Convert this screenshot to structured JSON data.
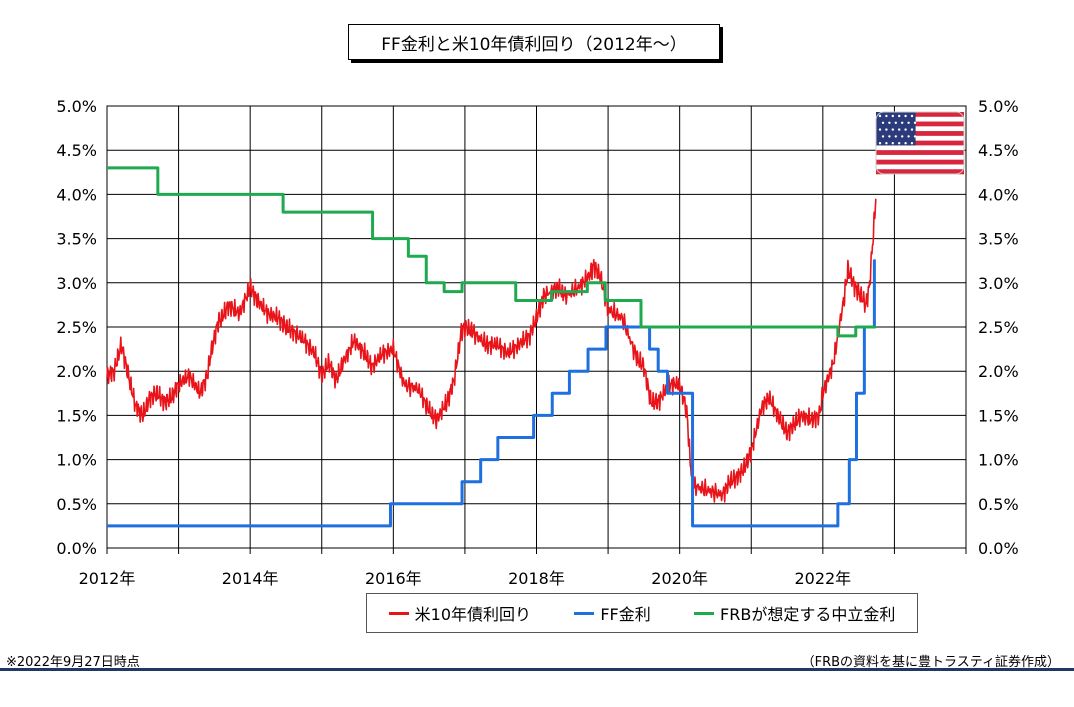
{
  "chart_data": {
    "type": "line",
    "title": "FF金利と米10年債利回り（2012年～）",
    "footnote": "※2022年9月27日時点",
    "source": "（FRBの資料を基に豊トラスティ証券作成）",
    "xlabel": "",
    "ylabel": "",
    "x_range": [
      2012.0,
      2024.0
    ],
    "ylim": [
      0.0,
      5.0
    ],
    "grid": true,
    "x_tick_labels": [
      {
        "x": 2012,
        "label": "2012年"
      },
      {
        "x": 2014,
        "label": "2014年"
      },
      {
        "x": 2016,
        "label": "2016年"
      },
      {
        "x": 2018,
        "label": "2018年"
      },
      {
        "x": 2020,
        "label": "2020年"
      },
      {
        "x": 2022,
        "label": "2022年"
      }
    ],
    "y_tick_labels": [
      "0.0%",
      "0.5%",
      "1.0%",
      "1.5%",
      "2.0%",
      "2.5%",
      "3.0%",
      "3.5%",
      "4.0%",
      "4.5%",
      "5.0%"
    ],
    "legend_position": "bottom-center",
    "series": [
      {
        "name": "米10年債利回り",
        "color": "#e8141a",
        "style": "line",
        "x": [
          2012.0,
          2012.1,
          2012.2,
          2012.3,
          2012.4,
          2012.5,
          2012.6,
          2012.7,
          2012.8,
          2012.9,
          2013.0,
          2013.15,
          2013.3,
          2013.4,
          2013.45,
          2013.55,
          2013.6,
          2013.7,
          2013.85,
          2014.0,
          2014.1,
          2014.25,
          2014.4,
          2014.5,
          2014.6,
          2014.75,
          2014.9,
          2015.0,
          2015.1,
          2015.2,
          2015.3,
          2015.45,
          2015.6,
          2015.7,
          2015.85,
          2016.0,
          2016.15,
          2016.35,
          2016.5,
          2016.6,
          2016.75,
          2016.85,
          2016.95,
          2017.0,
          2017.1,
          2017.3,
          2017.45,
          2017.6,
          2017.75,
          2017.9,
          2018.0,
          2018.1,
          2018.3,
          2018.4,
          2018.6,
          2018.75,
          2018.8,
          2018.9,
          2019.0,
          2019.2,
          2019.4,
          2019.5,
          2019.6,
          2019.7,
          2019.85,
          2020.0,
          2020.1,
          2020.15,
          2020.2,
          2020.4,
          2020.6,
          2020.7,
          2020.8,
          2020.9,
          2021.0,
          2021.15,
          2021.25,
          2021.4,
          2021.5,
          2021.6,
          2021.7,
          2021.85,
          2021.95,
          2022.0,
          2022.15,
          2022.3,
          2022.35,
          2022.45,
          2022.5,
          2022.6,
          2022.65,
          2022.7,
          2022.74
        ],
        "values": [
          1.95,
          2.0,
          2.3,
          1.95,
          1.6,
          1.5,
          1.7,
          1.75,
          1.65,
          1.7,
          1.85,
          1.95,
          1.75,
          1.95,
          2.2,
          2.55,
          2.6,
          2.75,
          2.65,
          2.95,
          2.8,
          2.65,
          2.6,
          2.5,
          2.45,
          2.35,
          2.2,
          1.95,
          2.1,
          1.9,
          2.1,
          2.35,
          2.2,
          2.05,
          2.2,
          2.25,
          1.85,
          1.8,
          1.55,
          1.45,
          1.65,
          1.9,
          2.45,
          2.5,
          2.45,
          2.3,
          2.3,
          2.2,
          2.3,
          2.4,
          2.6,
          2.85,
          2.95,
          2.85,
          2.95,
          3.1,
          3.2,
          3.05,
          2.7,
          2.6,
          2.15,
          2.05,
          1.65,
          1.65,
          1.85,
          1.85,
          1.55,
          0.95,
          0.7,
          0.65,
          0.6,
          0.75,
          0.8,
          0.9,
          1.1,
          1.6,
          1.7,
          1.45,
          1.3,
          1.4,
          1.5,
          1.45,
          1.5,
          1.75,
          2.1,
          2.85,
          3.15,
          2.95,
          2.9,
          2.75,
          2.95,
          3.5,
          3.95
        ]
      },
      {
        "name": "FF金利",
        "color": "#1e6fe0",
        "style": "step",
        "x": [
          2012.0,
          2015.96,
          2016.96,
          2017.22,
          2017.46,
          2017.96,
          2018.22,
          2018.46,
          2018.72,
          2018.97,
          2019.58,
          2019.7,
          2019.83,
          2020.18,
          2022.21,
          2022.37,
          2022.47,
          2022.58,
          2022.72,
          2022.74
        ],
        "values": [
          0.25,
          0.5,
          0.75,
          1.0,
          1.25,
          1.5,
          1.75,
          2.0,
          2.25,
          2.5,
          2.25,
          2.0,
          1.75,
          0.25,
          0.5,
          1.0,
          1.75,
          2.5,
          3.25,
          3.25
        ]
      },
      {
        "name": "FRBが想定する中立金利",
        "color": "#1faa4f",
        "style": "step",
        "x": [
          2012.0,
          2012.71,
          2014.46,
          2015.71,
          2016.21,
          2016.46,
          2016.71,
          2016.96,
          2017.71,
          2018.21,
          2018.71,
          2018.96,
          2019.46,
          2022.21,
          2022.46,
          2022.74
        ],
        "values": [
          4.3,
          4.0,
          3.8,
          3.5,
          3.3,
          3.0,
          2.9,
          3.0,
          2.8,
          2.9,
          3.0,
          2.8,
          2.5,
          2.4,
          2.5,
          2.5
        ]
      }
    ],
    "icons": {
      "flag": "us-flag-icon"
    }
  }
}
